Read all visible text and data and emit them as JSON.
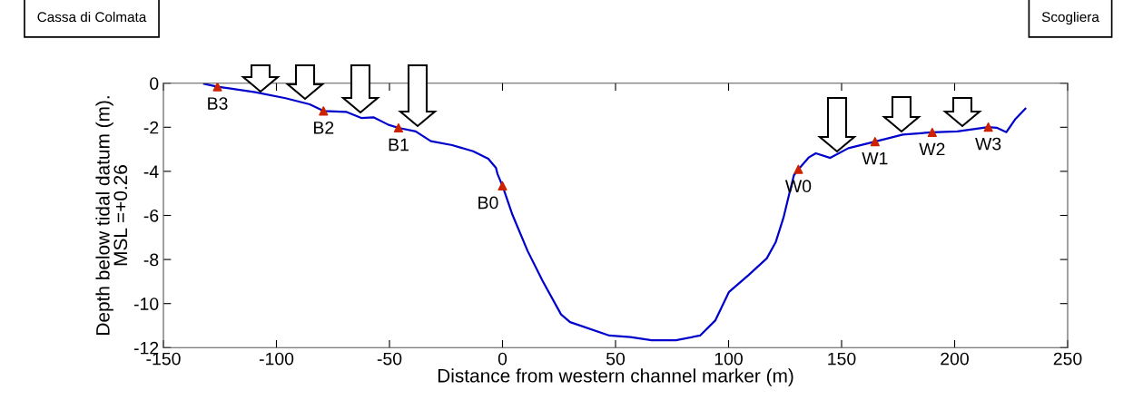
{
  "chart_data": {
    "type": "line",
    "xlabel": "Distance from western channel marker (m)",
    "ylabel": "Depth below tidal datum (m).\nMSL =+0.26",
    "xlim": [
      -150,
      250
    ],
    "xticks": [
      -150,
      -100,
      -50,
      0,
      50,
      100,
      150,
      200,
      250
    ],
    "ylim": [
      -12,
      0
    ],
    "yticks": [
      -12,
      -10,
      -8,
      -6,
      -4,
      -2,
      0
    ],
    "grid": false,
    "legend": false,
    "series": [
      {
        "color": "#0000cc",
        "marker": "none",
        "line_style": "solid",
        "x": [
          -132,
          -126.1,
          -109.4,
          -96,
          -85.3,
          -79.2,
          -69.2,
          -62.5,
          -57.1,
          -50.4,
          -46,
          -38.4,
          -31.7,
          -22.3,
          -13,
          -6.3,
          -2.9,
          -2.2,
          0,
          4.4,
          11.1,
          17.8,
          25.9,
          29.9,
          47.3,
          56.6,
          66,
          76.7,
          87.4,
          94.1,
          100.2,
          108.8,
          116.9,
          120.9,
          124.3,
          126.9,
          128.9,
          130.9,
          135.6,
          138.6,
          145,
          153,
          164.8,
          177.1,
          190.1,
          201.2,
          214.9,
          218.6,
          222.9,
          226.7,
          231.3
        ],
        "values": [
          -0.03,
          -0.16,
          -0.41,
          -0.68,
          -0.96,
          -1.26,
          -1.3,
          -1.58,
          -1.55,
          -1.89,
          -2.03,
          -2.19,
          -2.63,
          -2.81,
          -3.09,
          -3.43,
          -3.84,
          -4.12,
          -4.66,
          -5.97,
          -7.61,
          -8.98,
          -10.49,
          -10.84,
          -11.45,
          -11.52,
          -11.66,
          -11.66,
          -11.45,
          -10.77,
          -9.47,
          -8.71,
          -7.95,
          -7.2,
          -6.1,
          -5,
          -4.18,
          -3.91,
          -3.36,
          -3.18,
          -3.39,
          -2.95,
          -2.65,
          -2.33,
          -2.23,
          -2.19,
          -1.99,
          -2.02,
          -2.22,
          -1.65,
          -1.16
        ]
      },
      {
        "type": "scatter",
        "color": "#cc2200",
        "marker": "triangle",
        "x": [
          -126.1,
          -79.2,
          -46,
          0,
          130.9,
          164.8,
          190.1,
          214.9
        ],
        "values": [
          -0.16,
          -1.26,
          -2.03,
          -4.66,
          -3.91,
          -2.65,
          -2.23,
          -1.99
        ]
      }
    ],
    "annotations": [
      {
        "text": "B3",
        "x": -126.1,
        "y": -0.16
      },
      {
        "text": "B2",
        "x": -79.2,
        "y": -1.26
      },
      {
        "text": "B1",
        "x": -46,
        "y": -2.03
      },
      {
        "text": "B0",
        "x": 0,
        "y": -4.66
      },
      {
        "text": "W0",
        "x": 130.9,
        "y": -3.91
      },
      {
        "text": "W1",
        "x": 164.8,
        "y": -2.65
      },
      {
        "text": "W2",
        "x": 190.1,
        "y": -2.23
      },
      {
        "text": "W3",
        "x": 214.9,
        "y": -1.99
      },
      "Cassa di Colmata",
      "Scogliera"
    ]
  }
}
